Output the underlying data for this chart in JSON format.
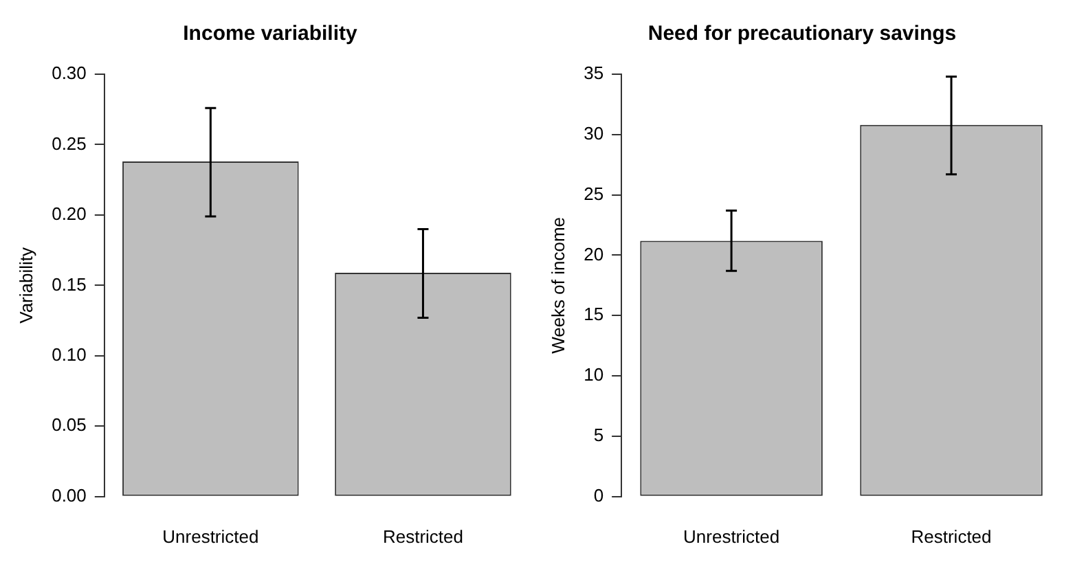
{
  "chart_data": [
    {
      "type": "bar",
      "title": "Income variability",
      "ylabel": "Variability",
      "categories": [
        "Unrestricted",
        "Restricted"
      ],
      "values": [
        0.238,
        0.159
      ],
      "errors": [
        [
          0.199,
          0.276
        ],
        [
          0.127,
          0.19
        ]
      ],
      "color": "#bebebe",
      "ylim": [
        0,
        0.3
      ],
      "yticks": [
        {
          "value": 0,
          "label": "0.00"
        },
        {
          "value": 0.05,
          "label": "0.05"
        },
        {
          "value": 0.1,
          "label": "0.10"
        },
        {
          "value": 0.15,
          "label": "0.15"
        },
        {
          "value": 0.2,
          "label": "0.20"
        },
        {
          "value": 0.25,
          "label": "0.25"
        },
        {
          "value": 0.3,
          "label": "0.30"
        }
      ],
      "grid": false,
      "legend": false
    },
    {
      "type": "bar",
      "title": "Need for precautionary savings",
      "ylabel": "Weeks of income",
      "categories": [
        "Unrestricted",
        "Restricted"
      ],
      "values": [
        21.2,
        30.8
      ],
      "errors": [
        [
          18.7,
          23.7
        ],
        [
          26.7,
          34.8
        ]
      ],
      "color": "#bebebe",
      "ylim": [
        0,
        35
      ],
      "yticks": [
        0,
        5,
        10,
        15,
        20,
        25,
        30,
        35
      ],
      "grid": false,
      "legend": false
    }
  ]
}
